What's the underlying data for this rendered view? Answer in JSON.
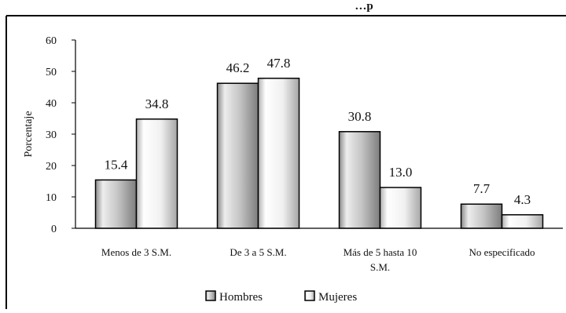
{
  "chart_data": {
    "type": "bar",
    "title": "…p",
    "ylabel": "Porcentaje",
    "xlabel": "",
    "ylim": [
      0,
      60
    ],
    "yticks": [
      0,
      10,
      20,
      30,
      40,
      50,
      60
    ],
    "categories": [
      [
        "Menos de 3 S.M."
      ],
      [
        "De 3 a 5 S.M."
      ],
      [
        "Más de 5 hasta 10",
        "S.M."
      ],
      [
        "No especificado"
      ]
    ],
    "series": [
      {
        "name": "Hombres",
        "values": [
          15.4,
          46.2,
          30.8,
          7.7
        ],
        "value_labels": [
          "15.4",
          "46.2",
          "30.8",
          "7.7"
        ],
        "color": "#c9c9c9"
      },
      {
        "name": "Mujeres",
        "values": [
          34.8,
          47.8,
          13.0,
          4.3
        ],
        "value_labels": [
          "34.8",
          "47.8",
          "13.0",
          "4.3"
        ],
        "color": "#f4f4f4"
      }
    ],
    "grid": false,
    "legend": "bottom-center"
  }
}
